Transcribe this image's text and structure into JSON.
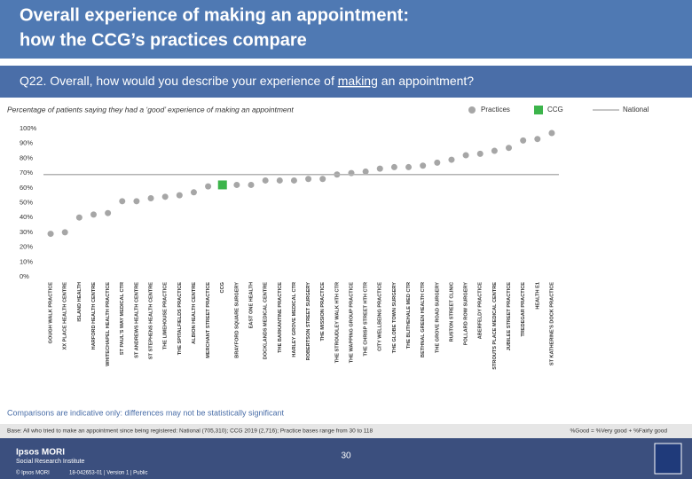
{
  "header": {
    "title_lines": [
      "Overall experience of making an appointment:",
      "how the CCG’s practices compare"
    ],
    "question_parts": [
      "Q22. Overall, how would you describe your experience of ",
      "making",
      " an appointment?"
    ]
  },
  "chart_data": {
    "type": "dot",
    "subtitle": "Percentage of patients saying they had a ‘good’ experience of making an appointment",
    "categories": [
      "GOUGH WALK PRACTICE",
      "XX PLACE HEALTH CENTRE",
      "ISLAND HEALTH",
      "HARFORD HEALTH CENTRE",
      "WHITECHAPEL HEALTH PRACTICE",
      "ST PAUL'S WAY MEDICAL CTR",
      "ST ANDREWS HEALTH CENTRE",
      "ST STEPHENS HEALTH CENTRE",
      "THE LIMEHOUSE PRACTICE",
      "THE SPITALFIELDS PRACTICE",
      "ALBION HEALTH CENTRE",
      "MERCHANT STREET PRACTICE",
      "CCG",
      "BRAYFORD SQUARE SURGERY",
      "EAST ONE HEALTH",
      "DOCKLANDS MEDICAL CENTRE",
      "THE BARKANTINE PRACTICE",
      "HARLEY GROVE MEDICAL CTR",
      "ROBERTSON STREET SURGERY",
      "THE MISSION PRACTICE",
      "THE STROUDLEY WALK HTH CTR",
      "THE WAPPING GROUP PRACTICE",
      "THE CHRISP STREET HTH CTR",
      "CITY WELLBEING PRACTICE",
      "THE GLOBE TOWN SURGERY",
      "THE BLITHEHALE MED CTR",
      "BETHNAL GREEN HEALTH CTR",
      "THE GROVE ROAD SURGERY",
      "RUSTON STREET CLINIC",
      "POLLARD ROW SURGERY",
      "ABERFELDY PRACTICE",
      "STROUTS PLACE MEDICAL CENTRE",
      "JUBILEE STREET PRACTICE",
      "TREDEGAR PRACTICE",
      "HEALTH E1",
      "ST KATHERINE'S DOCK PRACTICE"
    ],
    "series": [
      {
        "name": "Practices",
        "color": "#a6a6a6",
        "marker": "circle",
        "values": [
          29,
          30,
          40,
          42,
          43,
          51,
          51,
          53,
          54,
          55,
          57,
          61,
          null,
          62,
          62,
          65,
          65,
          65,
          66,
          66,
          69,
          70,
          71,
          73,
          74,
          74,
          75,
          77,
          79,
          82,
          83,
          85,
          87,
          92,
          93,
          97
        ]
      },
      {
        "name": "CCG",
        "color": "#3cb44b",
        "marker": "square",
        "values": [
          null,
          null,
          null,
          null,
          null,
          null,
          null,
          null,
          null,
          null,
          null,
          null,
          62,
          null,
          null,
          null,
          null,
          null,
          null,
          null,
          null,
          null,
          null,
          null,
          null,
          null,
          null,
          null,
          null,
          null,
          null,
          null,
          null,
          null,
          null,
          null
        ]
      },
      {
        "name": "National",
        "color": "#b3b3b3",
        "marker": "line",
        "value": 69
      }
    ],
    "ylim": [
      0,
      100
    ],
    "yticks": [
      {
        "value": 0,
        "label": "0%"
      },
      {
        "value": 10,
        "label": "10%"
      },
      {
        "value": 20,
        "label": "20%"
      },
      {
        "value": 30,
        "label": "30%"
      },
      {
        "value": 40,
        "label": "40%"
      },
      {
        "value": 50,
        "label": "50%"
      },
      {
        "value": 60,
        "label": "60%"
      },
      {
        "value": 70,
        "label": "70%"
      },
      {
        "value": 80,
        "label": "80%"
      },
      {
        "value": 90,
        "label": "90%"
      },
      {
        "value": 100,
        "label": "100%"
      }
    ],
    "note": "Comparisons are indicative only: differences may not be statistically significant"
  },
  "footer": {
    "base": "Base: All who tried to make an appointment since being registered: National (705,310); CCG 2019 (2,716); Practice bases range from 30 to 118",
    "definition": "%Good = %Very good + %Fairly good",
    "page": "30",
    "org": [
      "Ipsos MORI",
      "Social Research Institute"
    ],
    "copyright": "© Ipsos MORI",
    "job": "18-042653-01 | Version 1 | Public"
  }
}
